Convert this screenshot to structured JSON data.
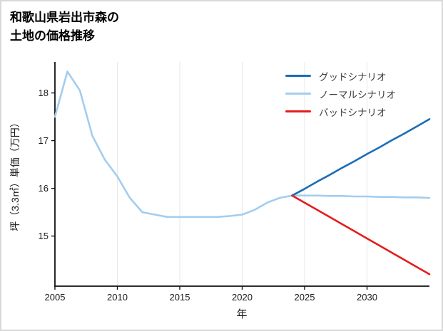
{
  "page": {
    "title_line1": "和歌山県岩出市森の",
    "title_line2": "土地の価格推移"
  },
  "chart_data": {
    "type": "line",
    "title": "和歌山県岩出市森の土地の価格推移",
    "xlabel": "年",
    "ylabel": "坪（3.3㎡）単価（万円）",
    "xlim": [
      2005,
      2035
    ],
    "ylim": [
      13.95,
      18.65
    ],
    "x_ticks": [
      2005,
      2010,
      2015,
      2020,
      2025,
      2030
    ],
    "y_ticks": [
      15,
      16,
      17,
      18
    ],
    "grid": "vertical-only",
    "legend_position": "top-right",
    "axis_color": "#111111",
    "gridline_color": "#e7e7e7",
    "series": [
      {
        "name": "グッドシナリオ",
        "color": "#1b6db8",
        "x": [
          2024,
          2025,
          2026,
          2027,
          2028,
          2029,
          2030,
          2031,
          2032,
          2033,
          2034,
          2035
        ],
        "y": [
          15.85,
          15.99,
          16.14,
          16.28,
          16.43,
          16.57,
          16.72,
          16.86,
          17.01,
          17.15,
          17.3,
          17.45
        ]
      },
      {
        "name": "ノーマルシナリオ",
        "color": "#a3cdef",
        "x": [
          2005,
          2006,
          2007,
          2008,
          2009,
          2010,
          2011,
          2012,
          2013,
          2014,
          2015,
          2016,
          2017,
          2018,
          2019,
          2020,
          2021,
          2022,
          2023,
          2024,
          2025,
          2026,
          2027,
          2028,
          2029,
          2030,
          2031,
          2032,
          2033,
          2034,
          2035
        ],
        "y": [
          17.5,
          18.45,
          18.05,
          17.1,
          16.6,
          16.25,
          15.8,
          15.5,
          15.45,
          15.4,
          15.4,
          15.4,
          15.4,
          15.4,
          15.42,
          15.45,
          15.55,
          15.7,
          15.8,
          15.85,
          15.85,
          15.85,
          15.84,
          15.84,
          15.83,
          15.83,
          15.82,
          15.82,
          15.81,
          15.81,
          15.8
        ]
      },
      {
        "name": "バッドシナリオ",
        "color": "#e51c1c",
        "x": [
          2024,
          2025,
          2026,
          2027,
          2028,
          2029,
          2030,
          2031,
          2032,
          2033,
          2034,
          2035
        ],
        "y": [
          15.85,
          15.7,
          15.55,
          15.4,
          15.25,
          15.1,
          14.95,
          14.8,
          14.65,
          14.5,
          14.35,
          14.2
        ]
      }
    ]
  }
}
